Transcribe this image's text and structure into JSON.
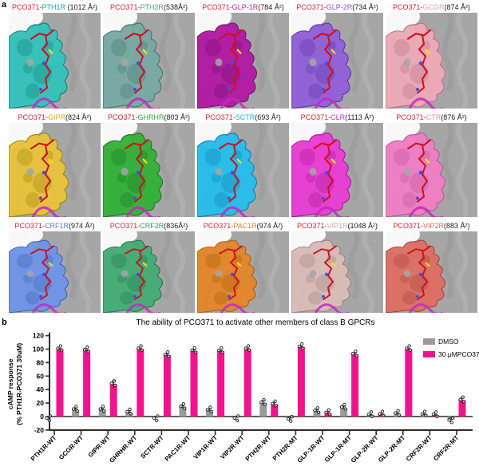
{
  "figure": {
    "panel_a_label": "a",
    "panel_b_label": "b",
    "title_prefix": "PCO371-",
    "title_prefix_color": "#e11d2e"
  },
  "panels": [
    [
      {
        "receptor": "PTH1R",
        "area": " (1012 Å²)",
        "name_color": "#17a398",
        "surface": "#35c2ba",
        "shade": "#0c7a72"
      },
      {
        "receptor": "PTH2R",
        "area": "(538Å²)",
        "name_color": "#4f9a94",
        "surface": "#79aaa4",
        "shade": "#3f6f6a"
      },
      {
        "receptor": "GLP-1R",
        "area": "(784 Å²)",
        "name_color": "#c21bb0",
        "surface": "#b21ba4",
        "shade": "#6e0e66"
      },
      {
        "receptor": "GLP-2R",
        "area": "(734 Å²)",
        "name_color": "#8f4fd6",
        "surface": "#9161d8",
        "shade": "#5b2f9e"
      },
      {
        "receptor": "GCGR",
        "area": "(874 Å²)",
        "name_color": "#eb9cae",
        "surface": "#ecaab6",
        "shade": "#b76e80"
      }
    ],
    [
      {
        "receptor": "GIPR",
        "area": "(824 Å²)",
        "name_color": "#d8b512",
        "surface": "#e6c33c",
        "shade": "#9c7f08"
      },
      {
        "receptor": "GHRHR",
        "area": "(803 Å²)",
        "name_color": "#2ca82c",
        "surface": "#35b13a",
        "shade": "#1a6e1e"
      },
      {
        "receptor": "SCTR",
        "area": "(693 Å²)",
        "name_color": "#13b1e6",
        "surface": "#28bdec",
        "shade": "#0b7aa6"
      },
      {
        "receptor": "CLR",
        "area": "(1113 Å²)",
        "name_color": "#e620cd",
        "surface": "#e93fd4",
        "shade": "#a01390"
      },
      {
        "receptor": "CTR",
        "area": "(876 Å²)",
        "name_color": "#f583c8",
        "surface": "#ef7fc4",
        "shade": "#bc4f92"
      }
    ],
    [
      {
        "receptor": "CRF1R",
        "area": "(974 Å²)",
        "name_color": "#4f7fe3",
        "surface": "#6e95e6",
        "shade": "#3a5cae"
      },
      {
        "receptor": "CRF2R",
        "area": "(836Å²)",
        "name_color": "#2f9e63",
        "surface": "#46ad76",
        "shade": "#1d6e4a"
      },
      {
        "receptor": "PAC1R",
        "area": "(974 Å²)",
        "name_color": "#e08018",
        "surface": "#e2862c",
        "shade": "#a35a0e"
      },
      {
        "receptor": "VIP1R",
        "area": "(1048 Å²)",
        "name_color": "#cfa6a6",
        "surface": "#d9bcb8",
        "shade": "#9d7a76"
      },
      {
        "receptor": "VIP2R",
        "area": "(883 Å²)",
        "name_color": "#e06455",
        "surface": "#dd7064",
        "shade": "#a03c32"
      }
    ]
  ],
  "chart_data": {
    "type": "bar",
    "title": "The ability of PCO371 to activate other members of class B GPCRs",
    "ylabel_line1": "cAMP response",
    "ylabel_line2": "(% PTH1R-PCO371 30uM)",
    "ylim": [
      -20,
      120
    ],
    "ytick_step": 20,
    "yticks": [
      120,
      100,
      80,
      60,
      40,
      20,
      0,
      -20
    ],
    "grid": false,
    "legend_position": "top-right-inside",
    "categories": [
      "PTH1R-WT",
      "GCGR-WT",
      "GIPR-WT",
      "GHRHR-WT",
      "SCTR-WT",
      "PAC1R-WT",
      "VIP1R-WT",
      "VIP2R-WT",
      "PTH2R-WT",
      "PTH2R-MT",
      "GLP-1R-WT",
      "GLP-1R-MT",
      "GLP-2R-WT",
      "GLP-2R-MT",
      "CRF2R-WT",
      "CRF2R-MT"
    ],
    "series": [
      {
        "name": "DMSO",
        "color": "#9a9a9a",
        "values": [
          -1,
          10,
          10,
          6,
          -1,
          14,
          9,
          -1,
          20,
          -2,
          8,
          13,
          2,
          4,
          3,
          -4
        ],
        "errors": [
          1,
          2,
          2,
          1,
          1,
          2,
          2,
          1,
          4,
          2,
          2,
          2,
          1,
          1,
          1,
          2
        ]
      },
      {
        "name": "30 μMPCO371",
        "color": "#f0148c",
        "values": [
          100,
          98,
          48,
          100,
          91,
          97,
          97,
          100,
          18,
          103,
          5,
          92,
          3,
          100,
          2,
          24
        ],
        "errors": [
          1,
          1,
          5,
          1,
          2,
          2,
          1,
          1,
          3,
          1,
          2,
          2,
          1,
          1,
          1,
          4
        ]
      }
    ]
  }
}
